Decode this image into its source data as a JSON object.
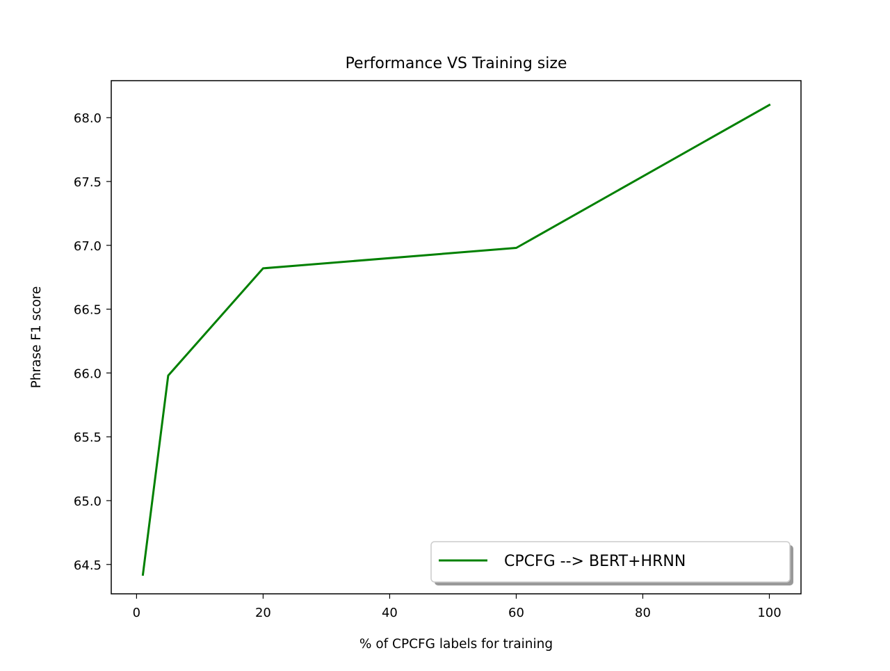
{
  "colors": {
    "series": "#008000",
    "axes": "#000000",
    "background": "#ffffff"
  },
  "chart_data": {
    "type": "line",
    "title": "Performance VS Training size",
    "xlabel": "% of CPCFG labels for training",
    "ylabel": "Phrase F1 score",
    "xlim": [
      -4,
      105
    ],
    "ylim": [
      64.27,
      68.29
    ],
    "xticks": [
      0,
      20,
      40,
      60,
      80,
      100
    ],
    "xtick_labels": [
      "0",
      "20",
      "40",
      "60",
      "80",
      "100"
    ],
    "yticks": [
      64.5,
      65.0,
      65.5,
      66.0,
      66.5,
      67.0,
      67.5,
      68.0
    ],
    "ytick_labels": [
      "64.5",
      "65.0",
      "65.5",
      "66.0",
      "66.5",
      "67.0",
      "67.5",
      "68.0"
    ],
    "grid": false,
    "legend_position": "lower right",
    "series": [
      {
        "name": "CPCFG --> BERT+HRNN",
        "x": [
          1,
          5,
          20,
          60,
          100
        ],
        "y": [
          64.42,
          65.98,
          66.82,
          66.98,
          68.1
        ],
        "color": "#008000"
      }
    ]
  }
}
